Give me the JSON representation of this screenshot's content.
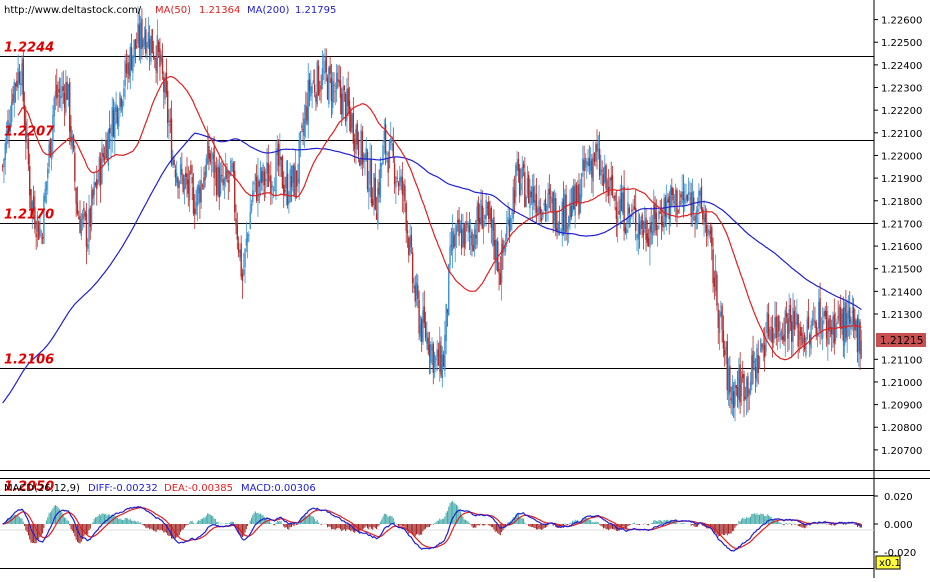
{
  "header": {
    "source": "http://www.deltastock.com/",
    "ma50_label": "MA(50)",
    "ma50_value": "1.21364",
    "ma200_label": "MA(200)",
    "ma200_value": "1.21795"
  },
  "colors": {
    "up_candle": "#3d8fd0",
    "down_candle": "#b02a2a",
    "ma50": "#e02020",
    "ma200": "#2020d0",
    "level_text": "#e00000",
    "price_tag_bg": "#c85050",
    "macd_pos": "#40a8a8",
    "macd_neg": "#a02020",
    "diff_line": "#2020d0",
    "dea_line": "#e02020"
  },
  "chart_data": {
    "type": "candlestick",
    "price_axis": {
      "ylim": [
        1.2062,
        1.2266
      ],
      "ticks": [
        "1.22600",
        "1.22500",
        "1.22400",
        "1.22300",
        "1.22200",
        "1.22100",
        "1.22000",
        "1.21900",
        "1.21800",
        "1.21700",
        "1.21600",
        "1.21500",
        "1.21400",
        "1.21300",
        "1.21100",
        "1.21000",
        "1.20900",
        "1.20800",
        "1.20700"
      ],
      "last_price": "1.21215"
    },
    "levels": [
      {
        "value": 1.2244,
        "label": "1.2244"
      },
      {
        "value": 1.2207,
        "label": "1.2207"
      },
      {
        "value": 1.217,
        "label": "1.2170"
      },
      {
        "value": 1.2106,
        "label": "1.2106"
      },
      {
        "value": 1.205,
        "label": "1.2050"
      }
    ],
    "close_anchors": [
      [
        0,
        1.2195
      ],
      [
        8,
        1.223
      ],
      [
        14,
        1.224
      ],
      [
        22,
        1.218
      ],
      [
        30,
        1.2165
      ],
      [
        40,
        1.2225
      ],
      [
        50,
        1.223
      ],
      [
        58,
        1.2175
      ],
      [
        66,
        1.2165
      ],
      [
        70,
        1.218
      ],
      [
        80,
        1.2205
      ],
      [
        90,
        1.2225
      ],
      [
        100,
        1.2245
      ],
      [
        110,
        1.2255
      ],
      [
        120,
        1.2245
      ],
      [
        125,
        1.223
      ],
      [
        132,
        1.22
      ],
      [
        138,
        1.219
      ],
      [
        150,
        1.218
      ],
      [
        160,
        1.22
      ],
      [
        170,
        1.2185
      ],
      [
        178,
        1.219
      ],
      [
        186,
        1.2145
      ],
      [
        194,
        1.2185
      ],
      [
        204,
        1.219
      ],
      [
        214,
        1.2195
      ],
      [
        220,
        1.2185
      ],
      [
        228,
        1.219
      ],
      [
        238,
        1.223
      ],
      [
        248,
        1.2235
      ],
      [
        256,
        1.223
      ],
      [
        264,
        1.2225
      ],
      [
        274,
        1.221
      ],
      [
        282,
        1.2195
      ],
      [
        290,
        1.218
      ],
      [
        296,
        1.2205
      ],
      [
        304,
        1.2195
      ],
      [
        312,
        1.218
      ],
      [
        318,
        1.2145
      ],
      [
        324,
        1.2125
      ],
      [
        330,
        1.212
      ],
      [
        336,
        1.2108
      ],
      [
        342,
        1.211
      ],
      [
        348,
        1.216
      ],
      [
        356,
        1.2165
      ],
      [
        364,
        1.2165
      ],
      [
        372,
        1.2175
      ],
      [
        380,
        1.2165
      ],
      [
        386,
        1.215
      ],
      [
        392,
        1.217
      ],
      [
        398,
        1.219
      ],
      [
        406,
        1.2185
      ],
      [
        414,
        1.2182
      ],
      [
        422,
        1.2178
      ],
      [
        430,
        1.2175
      ],
      [
        438,
        1.2175
      ],
      [
        446,
        1.218
      ],
      [
        452,
        1.2195
      ],
      [
        460,
        1.22
      ],
      [
        466,
        1.2188
      ],
      [
        474,
        1.2182
      ],
      [
        482,
        1.2175
      ],
      [
        490,
        1.2172
      ],
      [
        498,
        1.2168
      ],
      [
        506,
        1.217
      ],
      [
        514,
        1.2178
      ],
      [
        522,
        1.218
      ],
      [
        530,
        1.218
      ],
      [
        538,
        1.218
      ],
      [
        546,
        1.217
      ],
      [
        552,
        1.2145
      ],
      [
        558,
        1.212
      ],
      [
        564,
        1.2095
      ],
      [
        570,
        1.2098
      ],
      [
        578,
        1.21
      ],
      [
        586,
        1.211
      ],
      [
        594,
        1.2125
      ],
      [
        602,
        1.2125
      ],
      [
        610,
        1.2128
      ],
      [
        618,
        1.2122
      ],
      [
        626,
        1.212
      ],
      [
        632,
        1.213
      ],
      [
        638,
        1.2125
      ],
      [
        644,
        1.2125
      ],
      [
        648,
        1.2127
      ],
      [
        654,
        1.2125
      ],
      [
        660,
        1.2122
      ],
      [
        666,
        1.2121
      ]
    ],
    "indicators": [
      {
        "name": "MA(50)",
        "value": "1.21364"
      },
      {
        "name": "MA(200)",
        "value": "1.21795"
      }
    ]
  },
  "macd": {
    "label": "MACD(26,12,9)",
    "diff_label": "DIFF:-0.00232",
    "dea_label": "DEA:-0.00385",
    "macd_label": "MACD:0.00306",
    "ylim": [
      -0.03,
      0.03
    ],
    "ticks": [
      "0.020",
      "0.000",
      "-0.020"
    ],
    "zoom_label": "x0.1"
  }
}
